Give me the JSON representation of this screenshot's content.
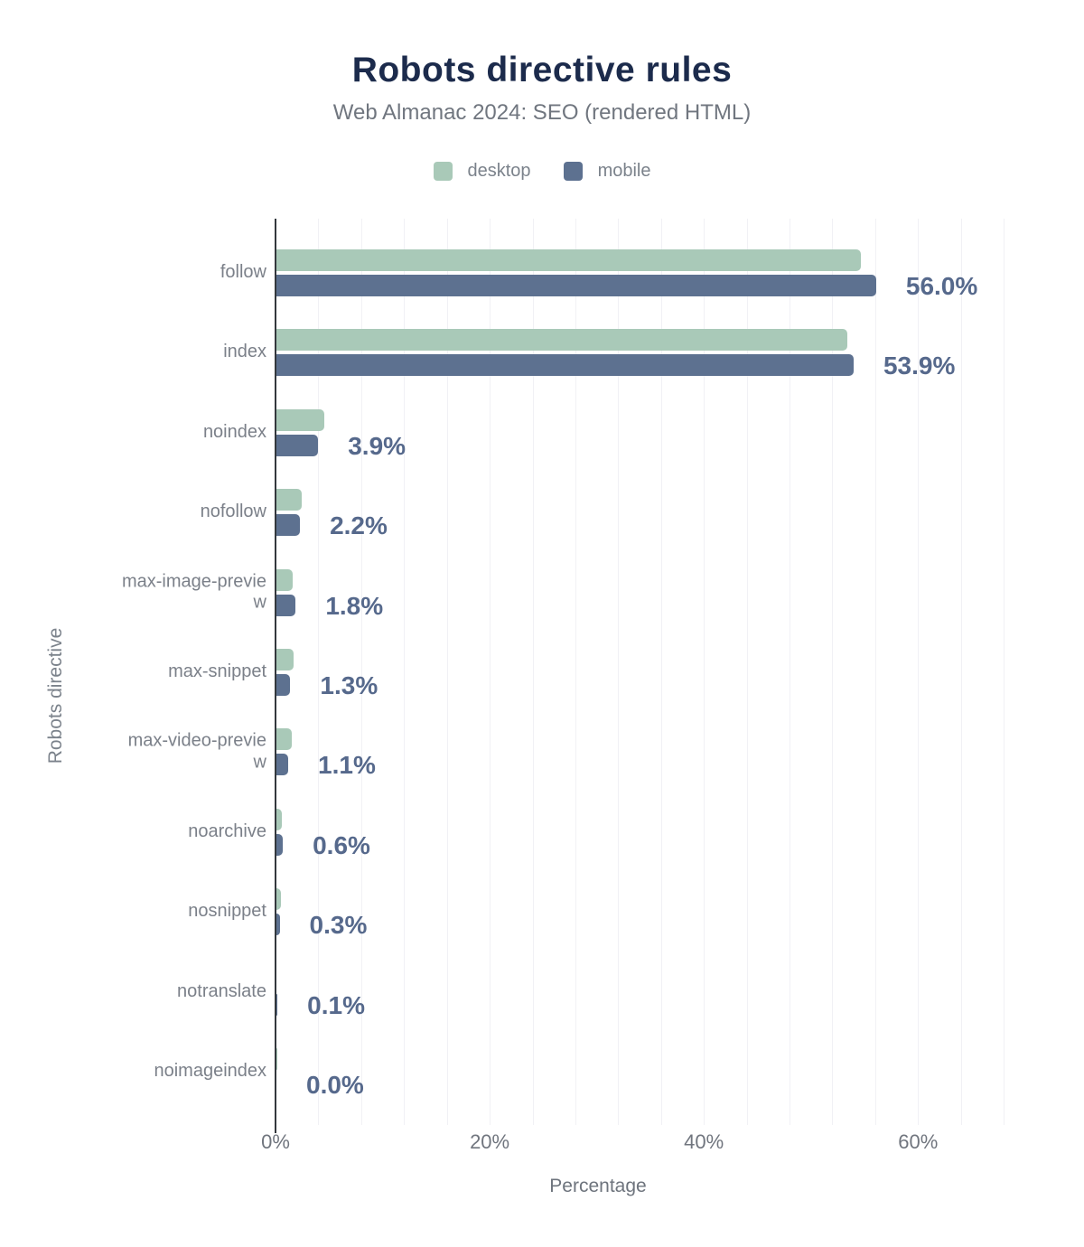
{
  "title": "Robots directive rules",
  "subtitle": "Web Almanac 2024: SEO (rendered HTML)",
  "legend": [
    {
      "label": "desktop",
      "color": "#a9c9b8"
    },
    {
      "label": "mobile",
      "color": "#5d7190"
    }
  ],
  "xlabel": "Percentage",
  "ylabel": "Robots directive",
  "colors": {
    "title": "#1c2b4c",
    "subtitle": "#70767f",
    "axis": "#33383d",
    "gridline": "#f1f1f5",
    "value_label": "#56698c",
    "category_label": "#7b8089",
    "desktop_bar": "#a9c9b8",
    "mobile_bar": "#5d7190"
  },
  "chart_data": {
    "type": "bar",
    "orientation": "horizontal",
    "title": "Robots directive rules",
    "subtitle": "Web Almanac 2024: SEO (rendered HTML)",
    "xlabel": "Percentage",
    "ylabel": "Robots directive",
    "xlim": [
      0,
      60
    ],
    "grid": "vertical minor gridlines every 4%",
    "legend_position": "top",
    "categories": [
      "follow",
      "index",
      "noindex",
      "nofollow",
      "max-image-preview",
      "max-snippet",
      "max-video-preview",
      "noarchive",
      "nosnippet",
      "notranslate",
      "noimageindex"
    ],
    "category_label_lines": [
      [
        "follow"
      ],
      [
        "index"
      ],
      [
        "noindex"
      ],
      [
        "nofollow"
      ],
      [
        "max-image-previe",
        "w"
      ],
      [
        "max-snippet"
      ],
      [
        "max-video-previe",
        "w"
      ],
      [
        "noarchive"
      ],
      [
        "nosnippet"
      ],
      [
        "notranslate"
      ],
      [
        "noimageindex"
      ]
    ],
    "series": [
      {
        "name": "desktop",
        "color": "#a9c9b8",
        "values": [
          54.6,
          53.3,
          4.5,
          2.4,
          1.5,
          1.6,
          1.4,
          0.5,
          0.4,
          0.0,
          0.1
        ]
      },
      {
        "name": "mobile",
        "color": "#5d7190",
        "values": [
          56.0,
          53.9,
          3.9,
          2.2,
          1.8,
          1.3,
          1.1,
          0.6,
          0.3,
          0.1,
          0.0
        ]
      }
    ],
    "value_labels": [
      "56.0%",
      "53.9%",
      "3.9%",
      "2.2%",
      "1.8%",
      "1.3%",
      "1.1%",
      "0.6%",
      "0.3%",
      "0.1%",
      "0.0%"
    ],
    "value_labels_series": "mobile",
    "x_ticks": [
      "0%",
      "20%",
      "40%",
      "60%"
    ],
    "x_tick_values": [
      0,
      20,
      40,
      60
    ]
  }
}
